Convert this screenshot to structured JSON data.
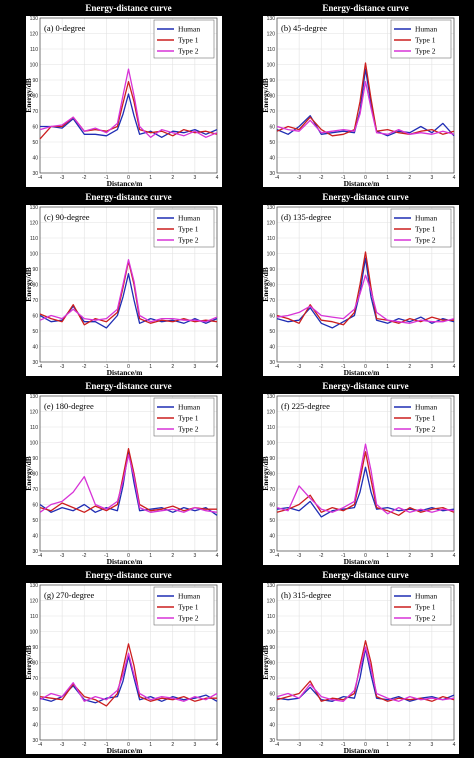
{
  "figure": {
    "colors": {
      "Human": "#1f2db4",
      "Type 1": "#cc1e1e",
      "Type 2": "#d733d7"
    }
  },
  "chart_data": [
    {
      "type": "line",
      "title": "Energy-distance curve",
      "annotation": "(a) 0-degree",
      "xlabel": "Distance/m",
      "ylabel": "Energy/dB",
      "xlim": [
        -4,
        4
      ],
      "ylim": [
        30,
        130
      ],
      "grid": true,
      "legend": "top-right",
      "xticks": [
        -4,
        -3,
        -2,
        -1,
        0,
        1,
        2,
        3,
        4
      ],
      "yticks": [
        30,
        40,
        50,
        60,
        70,
        80,
        90,
        100,
        110,
        120,
        130
      ],
      "x": [
        -4,
        -3.5,
        -3,
        -2.5,
        -2,
        -1.5,
        -1,
        -0.5,
        -0.25,
        0,
        0.25,
        0.5,
        1,
        1.5,
        2,
        2.5,
        3,
        3.5,
        4
      ],
      "series": [
        {
          "name": "Human",
          "values": [
            60,
            60,
            59,
            65,
            55,
            55,
            54,
            58,
            68,
            81,
            67,
            55,
            57,
            53,
            57,
            56,
            58,
            55,
            58
          ]
        },
        {
          "name": "Type 1",
          "values": [
            52,
            60,
            60,
            66,
            57,
            58,
            57,
            60,
            75,
            89,
            76,
            58,
            56,
            57,
            54,
            58,
            56,
            57,
            55
          ]
        },
        {
          "name": "Type 2",
          "values": [
            58,
            60,
            61,
            66,
            57,
            59,
            56,
            62,
            80,
            97,
            80,
            60,
            53,
            58,
            56,
            54,
            57,
            53,
            56
          ]
        }
      ]
    },
    {
      "type": "line",
      "title": "Energy-distance curve",
      "annotation": "(b) 45-degree",
      "xlabel": "Distance/m",
      "ylabel": "Energy/dB",
      "xlim": [
        -4,
        4
      ],
      "ylim": [
        30,
        130
      ],
      "grid": true,
      "legend": "top-right",
      "xticks": [
        -4,
        -3,
        -2,
        -1,
        0,
        1,
        2,
        3,
        4
      ],
      "yticks": [
        30,
        40,
        50,
        60,
        70,
        80,
        90,
        100,
        110,
        120,
        130
      ],
      "x": [
        -4,
        -3.5,
        -3,
        -2.5,
        -2,
        -1.5,
        -1,
        -0.5,
        -0.25,
        0,
        0.25,
        0.5,
        1,
        1.5,
        2,
        2.5,
        3,
        3.5,
        4
      ],
      "series": [
        {
          "name": "Human",
          "values": [
            58,
            55,
            60,
            67,
            55,
            56,
            57,
            56,
            70,
            97,
            75,
            57,
            54,
            57,
            56,
            60,
            56,
            62,
            54
          ]
        },
        {
          "name": "Type 1",
          "values": [
            57,
            60,
            58,
            66,
            58,
            54,
            55,
            58,
            76,
            101,
            78,
            57,
            58,
            56,
            55,
            57,
            58,
            55,
            57
          ]
        },
        {
          "name": "Type 2",
          "values": [
            60,
            58,
            57,
            64,
            56,
            57,
            58,
            57,
            68,
            89,
            72,
            56,
            55,
            58,
            55,
            56,
            55,
            57,
            55
          ]
        }
      ]
    },
    {
      "type": "line",
      "title": "Energy-distance curve",
      "annotation": "(c) 90-degree",
      "xlabel": "Distance/m",
      "ylabel": "Energy/dB",
      "xlim": [
        -4,
        4
      ],
      "ylim": [
        30,
        130
      ],
      "grid": true,
      "legend": "top-right",
      "xticks": [
        -4,
        -3,
        -2,
        -1,
        0,
        1,
        2,
        3,
        4
      ],
      "yticks": [
        30,
        40,
        50,
        60,
        70,
        80,
        90,
        100,
        110,
        120,
        130
      ],
      "x": [
        -4,
        -3.5,
        -3,
        -2.5,
        -2,
        -1.5,
        -1,
        -0.5,
        -0.25,
        0,
        0.25,
        0.5,
        1,
        1.5,
        2,
        2.5,
        3,
        3.5,
        4
      ],
      "series": [
        {
          "name": "Human",
          "values": [
            60,
            56,
            57,
            66,
            56,
            56,
            52,
            60,
            72,
            87,
            70,
            55,
            58,
            56,
            57,
            55,
            58,
            55,
            58
          ]
        },
        {
          "name": "Type 1",
          "values": [
            61,
            58,
            56,
            67,
            54,
            58,
            56,
            62,
            78,
            95,
            80,
            58,
            55,
            57,
            56,
            58,
            56,
            57,
            56
          ]
        },
        {
          "name": "Type 2",
          "values": [
            57,
            60,
            58,
            64,
            58,
            57,
            58,
            64,
            80,
            96,
            82,
            60,
            56,
            58,
            58,
            57,
            57,
            56,
            59
          ]
        }
      ]
    },
    {
      "type": "line",
      "title": "Energy-distance curve",
      "annotation": "(d) 135-degree",
      "xlabel": "Distance/m",
      "ylabel": "Energy/dB",
      "xlim": [
        -4,
        4
      ],
      "ylim": [
        30,
        130
      ],
      "grid": true,
      "legend": "top-right",
      "xticks": [
        -4,
        -3,
        -2,
        -1,
        0,
        1,
        2,
        3,
        4
      ],
      "yticks": [
        30,
        40,
        50,
        60,
        70,
        80,
        90,
        100,
        110,
        120,
        130
      ],
      "x": [
        -4,
        -3.5,
        -3,
        -2.5,
        -2,
        -1.5,
        -1,
        -0.5,
        -0.25,
        0,
        0.25,
        0.5,
        1,
        1.5,
        2,
        2.5,
        3,
        3.5,
        4
      ],
      "series": [
        {
          "name": "Human",
          "values": [
            58,
            56,
            57,
            65,
            55,
            52,
            56,
            60,
            75,
            97,
            72,
            57,
            55,
            58,
            56,
            59,
            55,
            58,
            56
          ]
        },
        {
          "name": "Type 1",
          "values": [
            60,
            58,
            55,
            67,
            57,
            56,
            54,
            62,
            80,
            101,
            78,
            58,
            57,
            55,
            58,
            56,
            59,
            57,
            57
          ]
        },
        {
          "name": "Type 2",
          "values": [
            59,
            60,
            62,
            66,
            60,
            59,
            58,
            64,
            74,
            86,
            76,
            62,
            57,
            56,
            55,
            57,
            56,
            56,
            58
          ]
        }
      ]
    },
    {
      "type": "line",
      "title": "Energy-distance curve",
      "annotation": "(e) 180-degree",
      "xlabel": "Distance/m",
      "ylabel": "Energy/dB",
      "xlim": [
        -4,
        4
      ],
      "ylim": [
        30,
        130
      ],
      "grid": true,
      "legend": "top-right",
      "xticks": [
        -4,
        -3,
        -2,
        -1,
        0,
        1,
        2,
        3,
        4
      ],
      "yticks": [
        30,
        40,
        50,
        60,
        70,
        80,
        90,
        100,
        110,
        120,
        130
      ],
      "x": [
        -4,
        -3.5,
        -3,
        -2.5,
        -2,
        -1.5,
        -1,
        -0.5,
        -0.25,
        0,
        0.25,
        0.5,
        1,
        1.5,
        2,
        2.5,
        3,
        3.5,
        4
      ],
      "series": [
        {
          "name": "Human",
          "values": [
            60,
            55,
            58,
            56,
            60,
            55,
            58,
            56,
            72,
            95,
            74,
            56,
            57,
            58,
            55,
            58,
            56,
            58,
            53
          ]
        },
        {
          "name": "Type 1",
          "values": [
            58,
            56,
            61,
            58,
            55,
            59,
            56,
            60,
            78,
            96,
            80,
            60,
            56,
            57,
            59,
            56,
            58,
            57,
            57
          ]
        },
        {
          "name": "Type 2",
          "values": [
            55,
            60,
            62,
            68,
            78,
            60,
            57,
            62,
            75,
            92,
            78,
            58,
            55,
            56,
            57,
            55,
            58,
            56,
            55
          ]
        }
      ]
    },
    {
      "type": "line",
      "title": "Energy-distance curve",
      "annotation": "(f) 225-degree",
      "xlabel": "Distance/m",
      "ylabel": "Energy/dB",
      "xlim": [
        -4,
        4
      ],
      "ylim": [
        30,
        130
      ],
      "grid": true,
      "legend": "top-right",
      "xticks": [
        -4,
        -3,
        -2,
        -1,
        0,
        1,
        2,
        3,
        4
      ],
      "yticks": [
        30,
        40,
        50,
        60,
        70,
        80,
        90,
        100,
        110,
        120,
        130
      ],
      "x": [
        -4,
        -3.5,
        -3,
        -2.5,
        -2,
        -1.5,
        -1,
        -0.5,
        -0.25,
        0,
        0.25,
        0.5,
        1,
        1.5,
        2,
        2.5,
        3,
        3.5,
        4
      ],
      "series": [
        {
          "name": "Human",
          "values": [
            57,
            58,
            56,
            62,
            52,
            56,
            57,
            58,
            68,
            84,
            68,
            57,
            58,
            56,
            57,
            56,
            58,
            56,
            57
          ]
        },
        {
          "name": "Type 1",
          "values": [
            55,
            57,
            60,
            66,
            55,
            58,
            56,
            60,
            76,
            94,
            76,
            58,
            56,
            53,
            58,
            55,
            57,
            58,
            55
          ]
        },
        {
          "name": "Type 2",
          "values": [
            58,
            56,
            72,
            64,
            57,
            55,
            58,
            62,
            80,
            99,
            82,
            60,
            54,
            58,
            55,
            57,
            55,
            57,
            56
          ]
        }
      ]
    },
    {
      "type": "line",
      "title": "Energy-distance curve",
      "annotation": "(g) 270-degree",
      "xlabel": "Distance/m",
      "ylabel": "Energy/dB",
      "xlim": [
        -4,
        4
      ],
      "ylim": [
        30,
        130
      ],
      "grid": true,
      "legend": "top-right",
      "xticks": [
        -4,
        -3,
        -2,
        -1,
        0,
        1,
        2,
        3,
        4
      ],
      "yticks": [
        30,
        40,
        50,
        60,
        70,
        80,
        90,
        100,
        110,
        120,
        130
      ],
      "x": [
        -4,
        -3.5,
        -3,
        -2.5,
        -2,
        -1.5,
        -1,
        -0.5,
        -0.25,
        0,
        0.25,
        0.5,
        1,
        1.5,
        2,
        2.5,
        3,
        3.5,
        4
      ],
      "series": [
        {
          "name": "Human",
          "values": [
            57,
            55,
            58,
            65,
            56,
            54,
            57,
            58,
            68,
            84,
            70,
            56,
            58,
            55,
            58,
            56,
            57,
            59,
            55
          ]
        },
        {
          "name": "Type 1",
          "values": [
            58,
            57,
            56,
            66,
            58,
            56,
            52,
            60,
            76,
            92,
            78,
            58,
            55,
            57,
            56,
            58,
            55,
            57,
            57
          ]
        },
        {
          "name": "Type 2",
          "values": [
            56,
            60,
            58,
            67,
            55,
            58,
            56,
            62,
            72,
            86,
            72,
            60,
            56,
            58,
            57,
            55,
            58,
            56,
            60
          ]
        }
      ]
    },
    {
      "type": "line",
      "title": "Energy-distance curve",
      "annotation": "(h) 315-degree",
      "xlabel": "Distance/m",
      "ylabel": "Energy/dB",
      "xlim": [
        -4,
        4
      ],
      "ylim": [
        30,
        130
      ],
      "grid": true,
      "legend": "top-right",
      "xticks": [
        -4,
        -3,
        -2,
        -1,
        0,
        1,
        2,
        3,
        4
      ],
      "yticks": [
        30,
        40,
        50,
        60,
        70,
        80,
        90,
        100,
        110,
        120,
        130
      ],
      "x": [
        -4,
        -3.5,
        -3,
        -2.5,
        -2,
        -1.5,
        -1,
        -0.5,
        -0.25,
        0,
        0.25,
        0.5,
        1,
        1.5,
        2,
        2.5,
        3,
        3.5,
        4
      ],
      "series": [
        {
          "name": "Human",
          "values": [
            57,
            56,
            57,
            64,
            56,
            55,
            58,
            57,
            70,
            89,
            72,
            57,
            56,
            58,
            55,
            57,
            58,
            56,
            59
          ]
        },
        {
          "name": "Type 1",
          "values": [
            56,
            58,
            60,
            68,
            55,
            57,
            56,
            60,
            78,
            94,
            80,
            58,
            55,
            57,
            56,
            57,
            55,
            58,
            56
          ]
        },
        {
          "name": "Type 2",
          "values": [
            58,
            60,
            57,
            66,
            58,
            56,
            55,
            62,
            76,
            90,
            76,
            60,
            57,
            55,
            58,
            56,
            57,
            56,
            57
          ]
        }
      ]
    }
  ]
}
